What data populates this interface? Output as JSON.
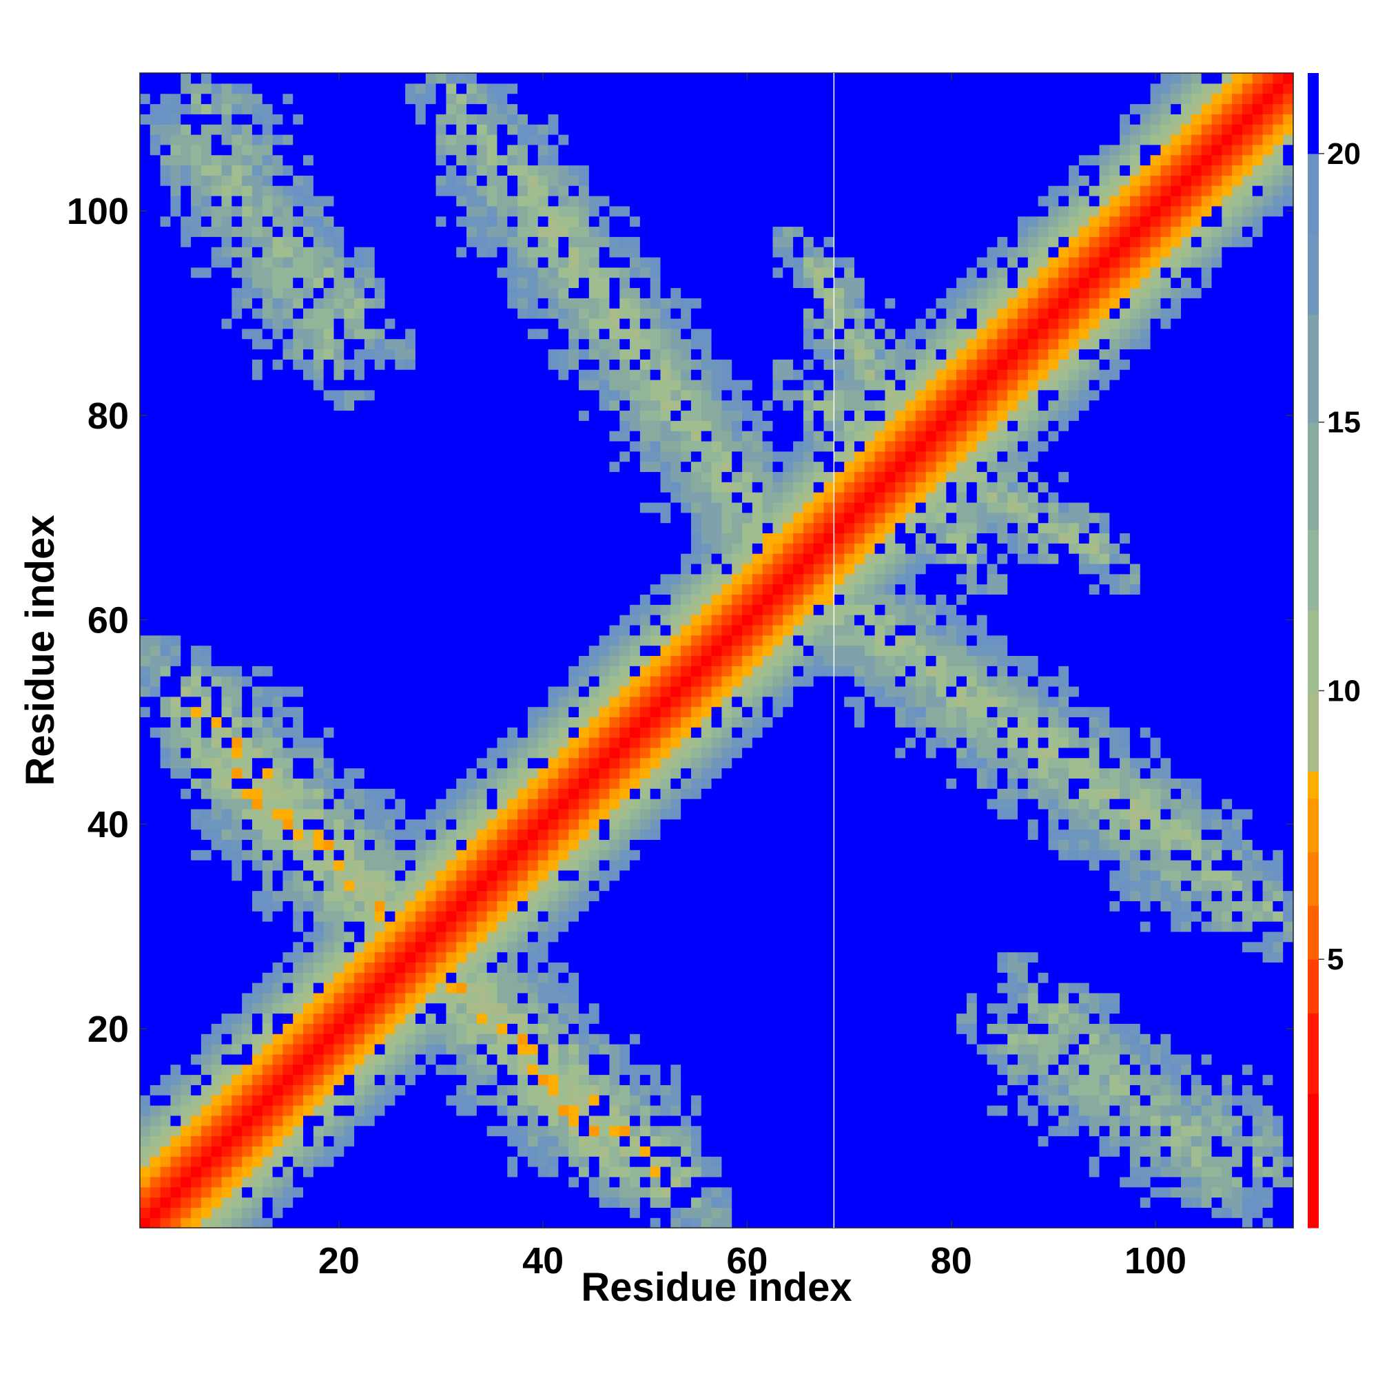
{
  "chart_data": {
    "type": "heatmap",
    "title": "",
    "xlabel": "Residue index",
    "ylabel": "Residue index",
    "n_residues": 113,
    "xlim": [
      0.5,
      113.5
    ],
    "ylim": [
      0.5,
      113.5
    ],
    "xticks": [
      20,
      40,
      60,
      80,
      100
    ],
    "yticks": [
      20,
      40,
      60,
      80,
      100
    ],
    "xtick_labels": [
      "20",
      "40",
      "60",
      "80",
      "100"
    ],
    "ytick_labels": [
      "20",
      "40",
      "60",
      "80",
      "100"
    ],
    "vertical_line_at": 68.5,
    "matrix_kind": "pairwise residue distance map (symmetric)",
    "value_range": [
      0,
      21
    ],
    "colorbar": {
      "ticks": [
        5,
        10,
        15,
        20
      ],
      "labels": [
        "5",
        "10",
        "15",
        "20"
      ],
      "range": [
        0,
        21.5
      ],
      "levels": [
        {
          "from": 0,
          "to": 2.5,
          "color": "#ff0000"
        },
        {
          "from": 2.5,
          "to": 4.0,
          "color": "#ff1a00"
        },
        {
          "from": 4.0,
          "to": 5.0,
          "color": "#ff4000"
        },
        {
          "from": 5.0,
          "to": 6.0,
          "color": "#ff6000"
        },
        {
          "from": 6.0,
          "to": 7.0,
          "color": "#ff8000"
        },
        {
          "from": 7.0,
          "to": 8.0,
          "color": "#ff9900"
        },
        {
          "from": 8.0,
          "to": 8.5,
          "color": "#ffae00"
        },
        {
          "from": 8.5,
          "to": 10.0,
          "color": "#a9bb88"
        },
        {
          "from": 10.0,
          "to": 11.5,
          "color": "#9fbd8f"
        },
        {
          "from": 11.5,
          "to": 13.0,
          "color": "#93b59a"
        },
        {
          "from": 13.0,
          "to": 15.0,
          "color": "#89ab9f"
        },
        {
          "from": 15.0,
          "to": 17.0,
          "color": "#7ea1ab"
        },
        {
          "from": 17.0,
          "to": 18.5,
          "color": "#6f97bd"
        },
        {
          "from": 18.5,
          "to": 20.0,
          "color": "#6a92c2"
        },
        {
          "from": 20.0,
          "to": 21.5,
          "color": "#0000ff"
        }
      ]
    },
    "structure": {
      "description": "Strong diagonal band (distance ~ |i-j|), plus an antiparallel off-diagonal contact band running from (~4,~50) to (~104,~4) region; isolated blue cells inside bands",
      "diagonal_band_halfwidth_residues": 7,
      "antiparallel_contacts": [
        {
          "i_range": [
            3,
            28
          ],
          "j_range": [
            28,
            55
          ],
          "min_distance": 4
        },
        {
          "i_range": [
            28,
            48
          ],
          "j_range": [
            6,
            28
          ],
          "min_distance": 4
        },
        {
          "i_range": [
            38,
            66
          ],
          "j_range": [
            62,
            104
          ],
          "min_distance": 5
        },
        {
          "i_range": [
            66,
            82
          ],
          "j_range": [
            66,
            95
          ],
          "min_distance": 5
        },
        {
          "i_range": [
            68,
            112
          ],
          "j_range": [
            30,
            62
          ],
          "min_distance": 6
        },
        {
          "i_range": [
            84,
            112
          ],
          "j_range": [
            6,
            20
          ],
          "min_distance": 7
        },
        {
          "i_range": [
            3,
            24
          ],
          "j_range": [
            88,
            108
          ],
          "min_distance": 7
        }
      ]
    }
  }
}
